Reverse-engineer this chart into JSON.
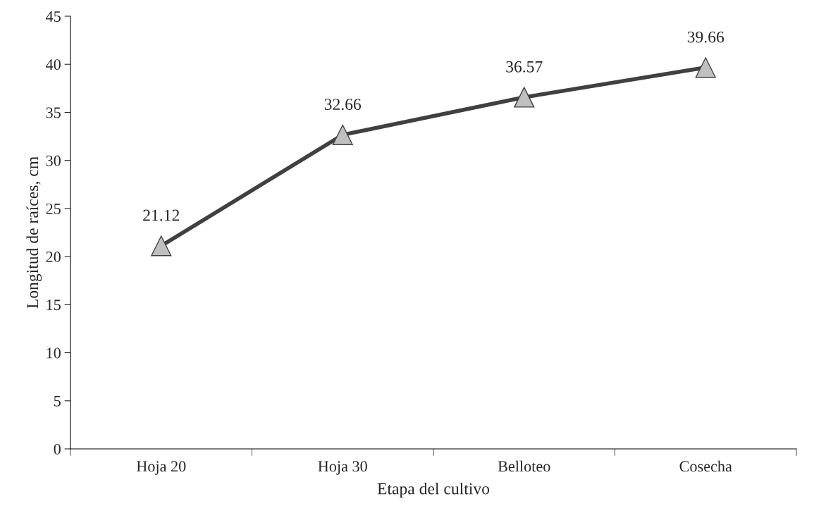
{
  "chart_data": {
    "type": "line",
    "xlabel": "Etapa del cultivo",
    "ylabel": "Longitud de raíces, cm",
    "categories": [
      "Hoja 20",
      "Hoja 30",
      "Belloteo",
      "Cosecha"
    ],
    "series": [
      {
        "color": "#404040",
        "values": [
          21.12,
          32.66,
          36.57,
          39.66
        ]
      }
    ],
    "ylim": [
      0,
      45
    ],
    "yticks": [
      0,
      5,
      10,
      15,
      20,
      25,
      30,
      35,
      40,
      45
    ],
    "marker": "triangle",
    "line_style": "solid",
    "data_labels": true,
    "grid": false,
    "legend": false
  }
}
